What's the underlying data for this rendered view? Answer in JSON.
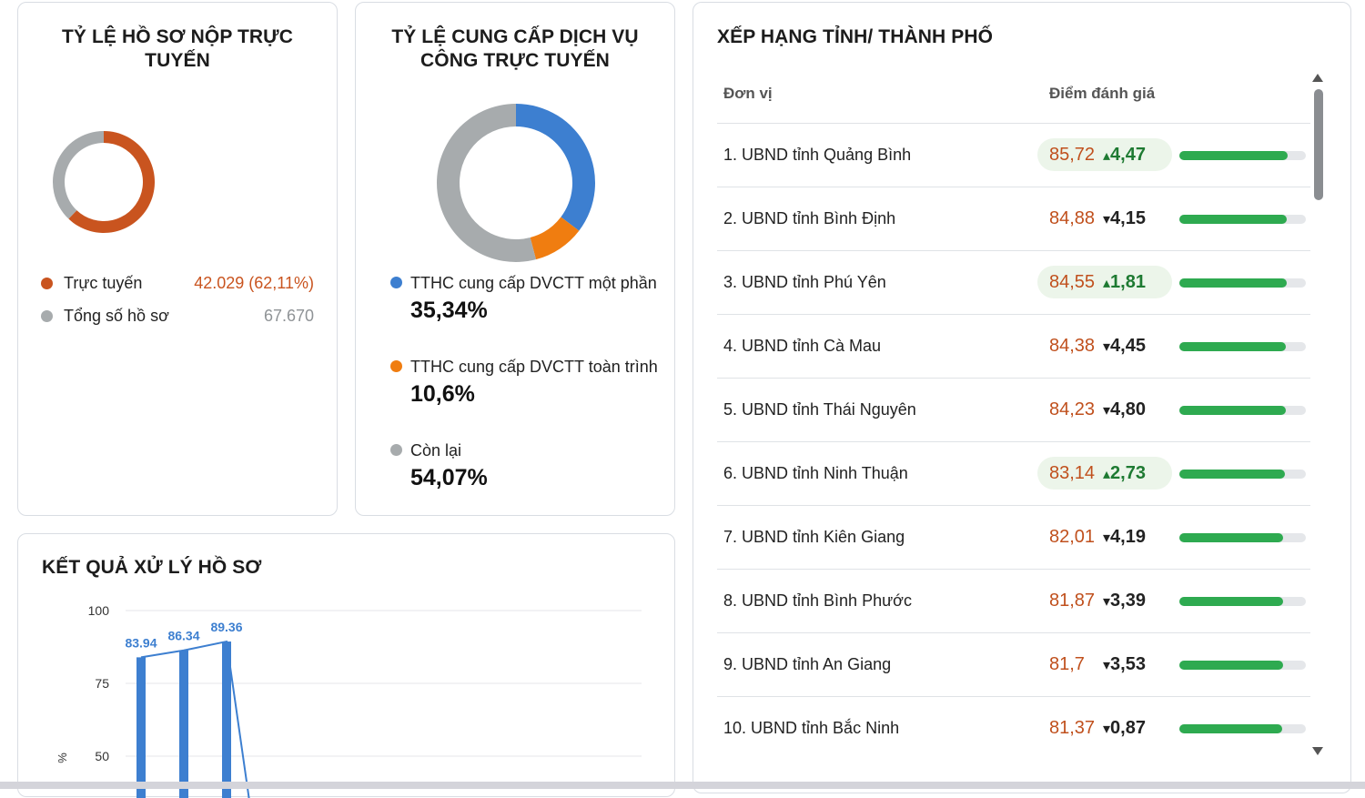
{
  "online_card": {
    "title": "TỶ LỆ HỒ SƠ NỘP TRỰC TUYẾN",
    "online_fraction": 0.6211,
    "legend": [
      {
        "label": "Trực tuyến",
        "value": "42.029 (62,11%)",
        "color": "#c9541f"
      },
      {
        "label": "Tổng số hồ sơ",
        "value": "67.670",
        "color": "#a7abad"
      }
    ]
  },
  "service_card": {
    "title": "TỶ LỆ CUNG CẤP DỊCH VỤ CÔNG TRỰC TUYẾN",
    "items": [
      {
        "label": "TTHC cung cấp DVCTT một phần",
        "pct": "35,34%",
        "value": 35.34,
        "color": "#3d7fd0"
      },
      {
        "label": "TTHC cung cấp DVCTT toàn trình",
        "pct": "10,6%",
        "value": 10.6,
        "color": "#f07d10"
      },
      {
        "label": "Còn lại",
        "pct": "54,07%",
        "value": 54.07,
        "color": "#a7abad"
      }
    ]
  },
  "ranking_card": {
    "title": "XẾP HẠNG TỈNH/ THÀNH PHỐ",
    "col_unit": "Đơn vị",
    "col_score": "Điểm đánh giá",
    "rows": [
      {
        "name": "1. UBND tỉnh Quảng Bình",
        "score": "85,72",
        "score_value": 85.72,
        "delta": "4,47",
        "trend": "up"
      },
      {
        "name": "2. UBND tỉnh Bình Định",
        "score": "84,88",
        "score_value": 84.88,
        "delta": "4,15",
        "trend": "down"
      },
      {
        "name": "3. UBND tỉnh Phú Yên",
        "score": "84,55",
        "score_value": 84.55,
        "delta": "1,81",
        "trend": "up"
      },
      {
        "name": "4. UBND tỉnh Cà Mau",
        "score": "84,38",
        "score_value": 84.38,
        "delta": "4,45",
        "trend": "down"
      },
      {
        "name": "5. UBND tỉnh Thái Nguyên",
        "score": "84,23",
        "score_value": 84.23,
        "delta": "4,80",
        "trend": "down"
      },
      {
        "name": "6. UBND tỉnh Ninh Thuận",
        "score": "83,14",
        "score_value": 83.14,
        "delta": "2,73",
        "trend": "up"
      },
      {
        "name": "7. UBND tỉnh Kiên Giang",
        "score": "82,01",
        "score_value": 82.01,
        "delta": "4,19",
        "trend": "down"
      },
      {
        "name": "8. UBND tỉnh Bình Phước",
        "score": "81,87",
        "score_value": 81.87,
        "delta": "3,39",
        "trend": "down"
      },
      {
        "name": "9. UBND tỉnh An Giang",
        "score": "81,7",
        "score_value": 81.7,
        "delta": "3,53",
        "trend": "down"
      },
      {
        "name": "10. UBND tỉnh Bắc Ninh",
        "score": "81,37",
        "score_value": 81.37,
        "delta": "0,87",
        "trend": "down"
      }
    ],
    "colors": {
      "score": "#c0501d",
      "up": "#1e7a32",
      "bar": "#2eaa50"
    }
  },
  "result_card": {
    "title": "KẾT QUẢ XỬ LÝ HỒ SƠ",
    "chart_data": {
      "type": "bar",
      "ylabel": "%",
      "yticks": [
        "100",
        "75",
        "50"
      ],
      "y_tick_values": [
        100,
        75,
        50
      ],
      "ylim": [
        50,
        100
      ],
      "values": [
        83.94,
        86.34,
        89.36
      ],
      "labels": [
        "83.94",
        "86.34",
        "89.36"
      ],
      "color": "#3d7fd0",
      "grid": true
    }
  }
}
